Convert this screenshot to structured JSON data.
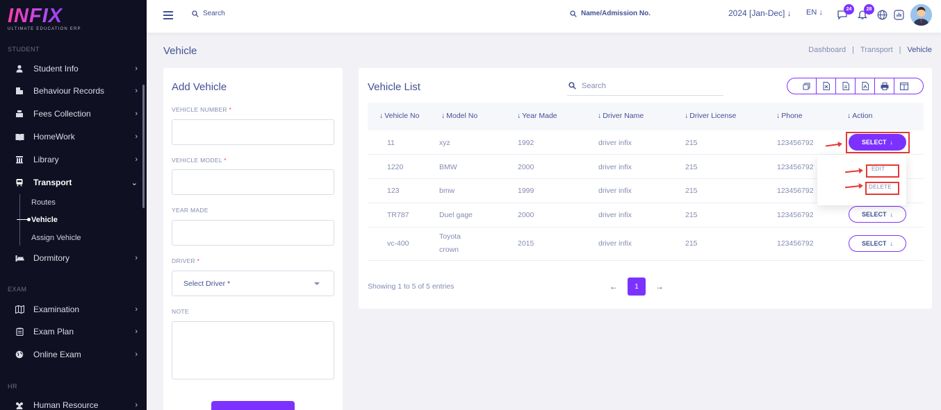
{
  "brand": {
    "logo": "INFIX",
    "tagline": "ULTIMATE EDUCATION ERP"
  },
  "sidebar": {
    "sections": {
      "student": "STUDENT",
      "exam": "EXAM",
      "hr": "HR"
    },
    "items": [
      {
        "label": "Student Info",
        "icon": "user-icon"
      },
      {
        "label": "Behaviour Records",
        "icon": "building-icon"
      },
      {
        "label": "Fees Collection",
        "icon": "cash-register-icon"
      },
      {
        "label": "HomeWork",
        "icon": "book-icon"
      },
      {
        "label": "Library",
        "icon": "library-icon"
      },
      {
        "label": "Transport",
        "icon": "bus-icon"
      },
      {
        "label": "Dormitory",
        "icon": "bed-icon"
      },
      {
        "label": "Examination",
        "icon": "map-icon"
      },
      {
        "label": "Exam Plan",
        "icon": "clipboard-icon"
      },
      {
        "label": "Online Exam",
        "icon": "globe-icon"
      },
      {
        "label": "Human Resource",
        "icon": "users-icon"
      }
    ],
    "transport_sub": [
      "Routes",
      "Vehicle",
      "Assign Vehicle"
    ]
  },
  "topbar": {
    "search_label": "Search",
    "search2_label": "Name/Admission No.",
    "session": "2024 [Jan-Dec]",
    "language": "EN",
    "messages_count": "24",
    "notifications_count": "28"
  },
  "page": {
    "title": "Vehicle",
    "breadcrumb": [
      "Dashboard",
      "Transport",
      "Vehicle"
    ],
    "separator": "|"
  },
  "add_form": {
    "title": "Add Vehicle",
    "vehicle_number_label": "VEHICLE NUMBER",
    "vehicle_model_label": "VEHICLE MODEL",
    "year_made_label": "YEAR MADE",
    "driver_label": "DRIVER",
    "driver_placeholder": "Select Driver *",
    "note_label": "NOTE",
    "required_mark": "*"
  },
  "vehicle_list": {
    "title": "Vehicle List",
    "search_placeholder": "Search",
    "export_icons": [
      "copy-icon",
      "excel-icon",
      "csv-icon",
      "pdf-icon",
      "print-icon",
      "columns-icon"
    ],
    "columns": [
      "Vehicle No",
      "Model No",
      "Year Made",
      "Driver Name",
      "Driver License",
      "Phone",
      "Action"
    ],
    "rows": [
      {
        "vehicle_no": "11",
        "model": "xyz",
        "year": "1992",
        "driver": "driver infix",
        "license": "215",
        "phone": "123456792"
      },
      {
        "vehicle_no": "1220",
        "model": "BMW",
        "year": "2000",
        "driver": "driver infix",
        "license": "215",
        "phone": "123456792"
      },
      {
        "vehicle_no": "123",
        "model": "bmw",
        "year": "1999",
        "driver": "driver infix",
        "license": "215",
        "phone": "123456792"
      },
      {
        "vehicle_no": "TR787",
        "model": "Duel gage",
        "year": "2000",
        "driver": "driver infix",
        "license": "215",
        "phone": "123456792"
      },
      {
        "vehicle_no": "vc-400",
        "model": "Toyota",
        "model_line2": "crown",
        "year": "2015",
        "driver": "driver infix",
        "license": "215",
        "phone": "123456792"
      }
    ],
    "select_label": "SELECT",
    "dropdown": {
      "edit": "EDIT",
      "delete": "DELETE"
    },
    "showing": "Showing 1 to 5 of 5 entries",
    "current_page": "1"
  },
  "colors": {
    "primary": "#7c32ff",
    "sidebar_bg": "#0f1021",
    "annotation_red": "#e53935"
  }
}
